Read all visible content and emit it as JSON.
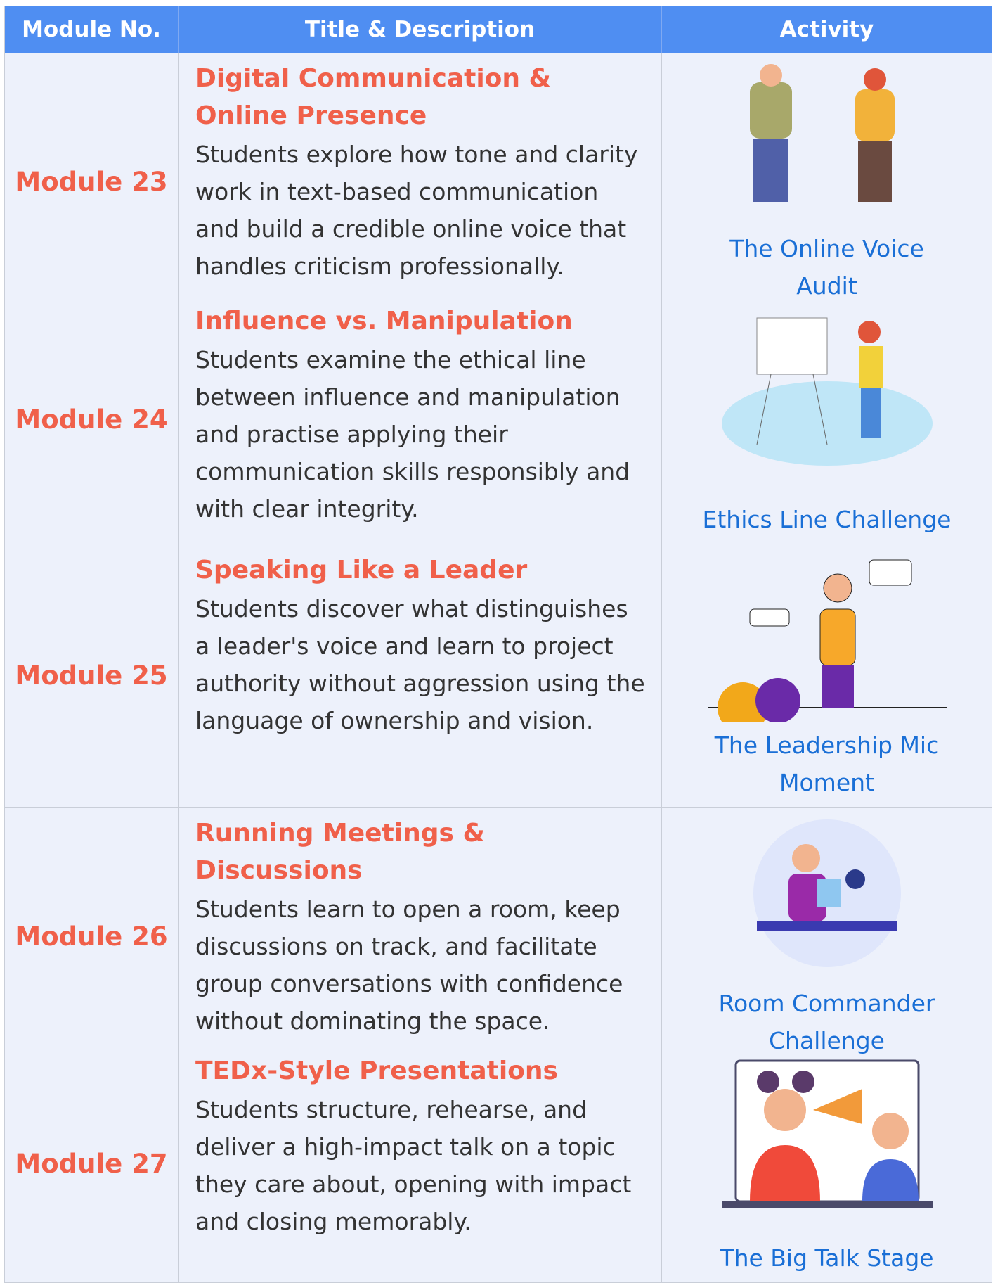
{
  "table": {
    "columns": [
      "Module No.",
      "Title & Description",
      "Activity"
    ],
    "rows": [
      {
        "module": "Module 23",
        "title": "Digital Communication & Online Presence",
        "description": "Students explore how tone and clarity work in text-based communication and build a credible online voice that handles criticism professionally.",
        "activity": "The Online Voice Audit"
      },
      {
        "module": "Module 24",
        "title": "Influence vs. Manipulation",
        "description": "Students examine the ethical line between influence and manipulation and practise applying their communication skills responsibly and with clear integrity.",
        "activity": "Ethics Line Challenge"
      },
      {
        "module": "Module 25",
        "title": "Speaking Like a Leader",
        "description": "Students discover what distinguishes a leader's voice and learn to project authority without aggression using the language of ownership and vision.",
        "activity": "The Leadership Mic Moment"
      },
      {
        "module": "Module 26",
        "title": "Running Meetings & Discussions",
        "description": "Students learn to open a room, keep discussions on track, and facilitate group conversations with confidence without dominating the space.",
        "activity": "Room Commander Challenge"
      },
      {
        "module": "Module 27",
        "title": "TEDx-Style Presentations",
        "description": "Students structure, rehearse, and deliver a high-impact talk on a topic they care about, opening with impact and closing memorably.",
        "activity": "The Big Talk Stage"
      }
    ]
  }
}
